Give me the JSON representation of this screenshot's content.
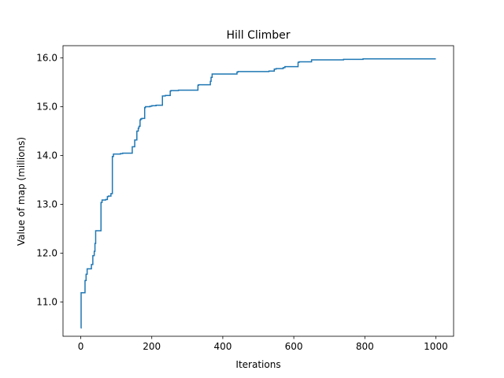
{
  "chart_data": {
    "type": "line",
    "title": "Hill Climber",
    "xlabel": "Iterations",
    "ylabel": "Value of map (millions)",
    "xlim": [
      -50,
      1050
    ],
    "ylim": [
      10.3,
      16.25
    ],
    "xticks": [
      0,
      200,
      400,
      600,
      800,
      1000
    ],
    "yticks": [
      11.0,
      12.0,
      13.0,
      14.0,
      15.0,
      16.0
    ],
    "xtick_labels": [
      "0",
      "200",
      "400",
      "600",
      "800",
      "1000"
    ],
    "ytick_labels": [
      "11.0",
      "12.0",
      "13.0",
      "14.0",
      "15.0",
      "16.0"
    ],
    "grid": false,
    "step": true,
    "line_color": "#1f77b4",
    "series": [
      {
        "x": [
          0,
          1,
          12,
          15,
          18,
          30,
          34,
          38,
          40,
          42,
          57,
          60,
          70,
          75,
          78,
          85,
          89,
          92,
          110,
          112,
          118,
          145,
          152,
          158,
          162,
          164,
          167,
          169,
          172,
          180,
          182,
          195,
          200,
          210,
          212,
          220,
          230,
          235,
          238,
          252,
          254,
          260,
          275,
          330,
          332,
          338,
          365,
          367,
          370,
          372,
          410,
          440,
          443,
          470,
          530,
          545,
          550,
          560,
          570,
          575,
          612,
          615,
          640,
          650,
          690,
          700,
          730,
          740,
          790,
          795,
          1000
        ],
        "y": [
          10.47,
          11.19,
          11.44,
          11.57,
          11.68,
          11.77,
          11.95,
          12.04,
          12.2,
          12.46,
          13.04,
          13.09,
          13.1,
          13.16,
          13.17,
          13.22,
          13.98,
          14.03,
          14.03,
          14.04,
          14.05,
          14.18,
          14.32,
          14.5,
          14.56,
          14.6,
          14.73,
          14.75,
          14.76,
          14.98,
          15.0,
          15.01,
          15.02,
          15.02,
          15.03,
          15.03,
          15.22,
          15.22,
          15.23,
          15.32,
          15.33,
          15.33,
          15.34,
          15.44,
          15.45,
          15.45,
          15.52,
          15.6,
          15.67,
          15.67,
          15.67,
          15.71,
          15.72,
          15.72,
          15.73,
          15.77,
          15.78,
          15.78,
          15.8,
          15.82,
          15.91,
          15.92,
          15.92,
          15.96,
          15.96,
          15.96,
          15.96,
          15.97,
          15.97,
          15.98,
          15.98
        ]
      }
    ]
  }
}
